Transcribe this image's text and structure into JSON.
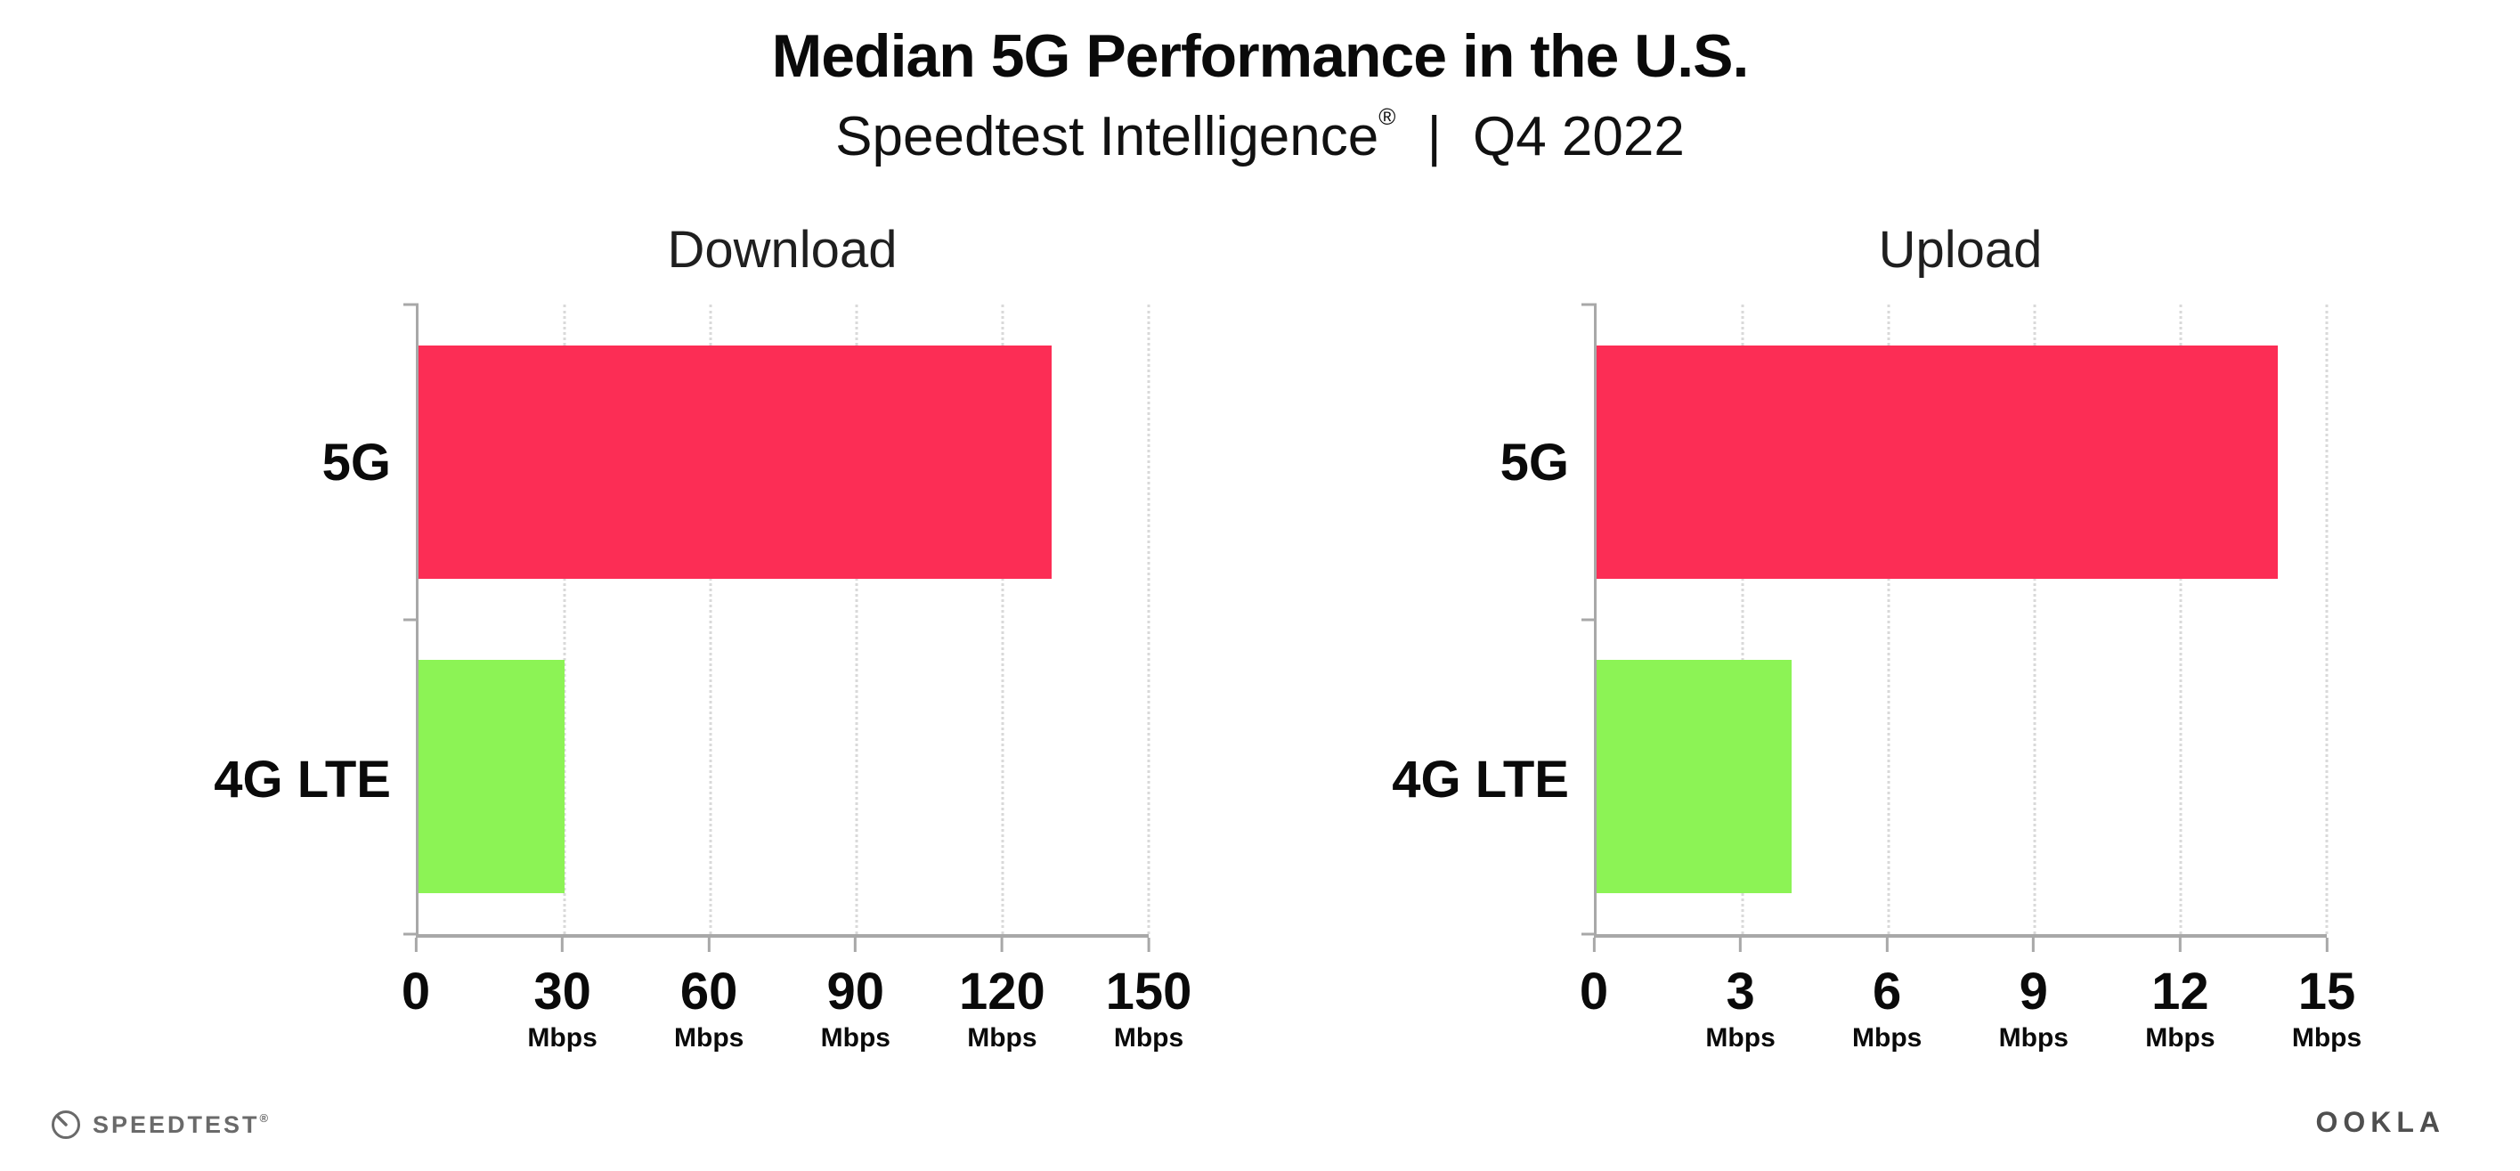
{
  "header": {
    "title": "Median 5G Performance in the U.S.",
    "subtitle": {
      "brand": "Speedtest Intelligence",
      "mark": "®",
      "divider": "|",
      "period": "Q4 2022"
    }
  },
  "colors": {
    "bar_5g": "#fc2d55",
    "bar_4g_lte": "#8cf355",
    "grid": "#d9d9d9",
    "axis": "#a8a8a8"
  },
  "chart_data": [
    {
      "type": "bar",
      "orientation": "horizontal",
      "title": "Download",
      "categories": [
        "5G",
        "4G LTE"
      ],
      "values": [
        130,
        30
      ],
      "unit": "Mbps",
      "xlim": [
        0,
        150
      ],
      "xticks": [
        0,
        30,
        60,
        90,
        120,
        150
      ],
      "bar_colors": [
        "#fc2d55",
        "#8cf355"
      ],
      "grid": true,
      "legend": "none"
    },
    {
      "type": "bar",
      "orientation": "horizontal",
      "title": "Upload",
      "categories": [
        "5G",
        "4G LTE"
      ],
      "values": [
        14,
        4
      ],
      "unit": "Mbps",
      "xlim": [
        0,
        15
      ],
      "xticks": [
        0,
        3,
        6,
        9,
        12,
        15
      ],
      "bar_colors": [
        "#fc2d55",
        "#8cf355"
      ],
      "grid": true,
      "legend": "none"
    }
  ],
  "footer": {
    "speedtest": "SPEEDTEST",
    "speedtest_mark": "®",
    "ookla": "OOKLA"
  }
}
